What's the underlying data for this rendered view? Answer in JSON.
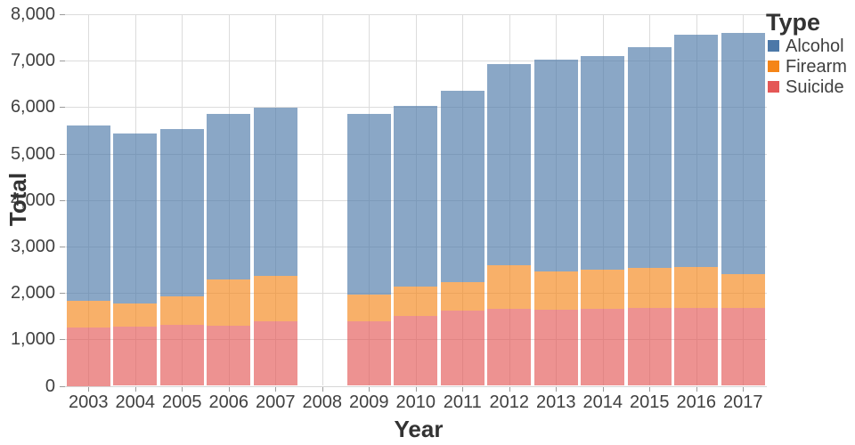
{
  "chart_data": {
    "type": "bar",
    "stacked": true,
    "title": "",
    "xlabel": "Year",
    "ylabel": "Total",
    "categories": [
      "2003",
      "2004",
      "2005",
      "2006",
      "2007",
      "2008",
      "2009",
      "2010",
      "2011",
      "2012",
      "2013",
      "2014",
      "2015",
      "2016",
      "2017"
    ],
    "series": [
      {
        "name": "Suicide",
        "color": "#e45756",
        "values": [
          1250,
          1270,
          1310,
          1300,
          1390,
          null,
          1390,
          1500,
          1620,
          1660,
          1640,
          1660,
          1670,
          1670,
          1680
        ]
      },
      {
        "name": "Firearm",
        "color": "#f58518",
        "values": [
          570,
          500,
          620,
          990,
          980,
          null,
          580,
          630,
          620,
          940,
          830,
          840,
          870,
          890,
          720
        ]
      },
      {
        "name": "Alcohol",
        "color": "#4c78a8",
        "values": [
          3790,
          3660,
          3600,
          3560,
          3620,
          null,
          3880,
          3900,
          4110,
          4330,
          4560,
          4600,
          4740,
          5000,
          5190
        ]
      }
    ],
    "stack_order_bottom_to_top": [
      "Suicide",
      "Firearm",
      "Alcohol"
    ],
    "missing_categories": [
      "2008"
    ],
    "ylim": [
      0,
      8000
    ],
    "ytick_step": 1000,
    "grid": true,
    "bar_fill_opacity": 0.65,
    "legend": {
      "title": "Type",
      "position": "top-right",
      "order": [
        "Alcohol",
        "Firearm",
        "Suicide"
      ]
    },
    "colors": {
      "grid": "#dcdcdc",
      "tick_label": "#404040",
      "axis_title": "#333333"
    }
  }
}
